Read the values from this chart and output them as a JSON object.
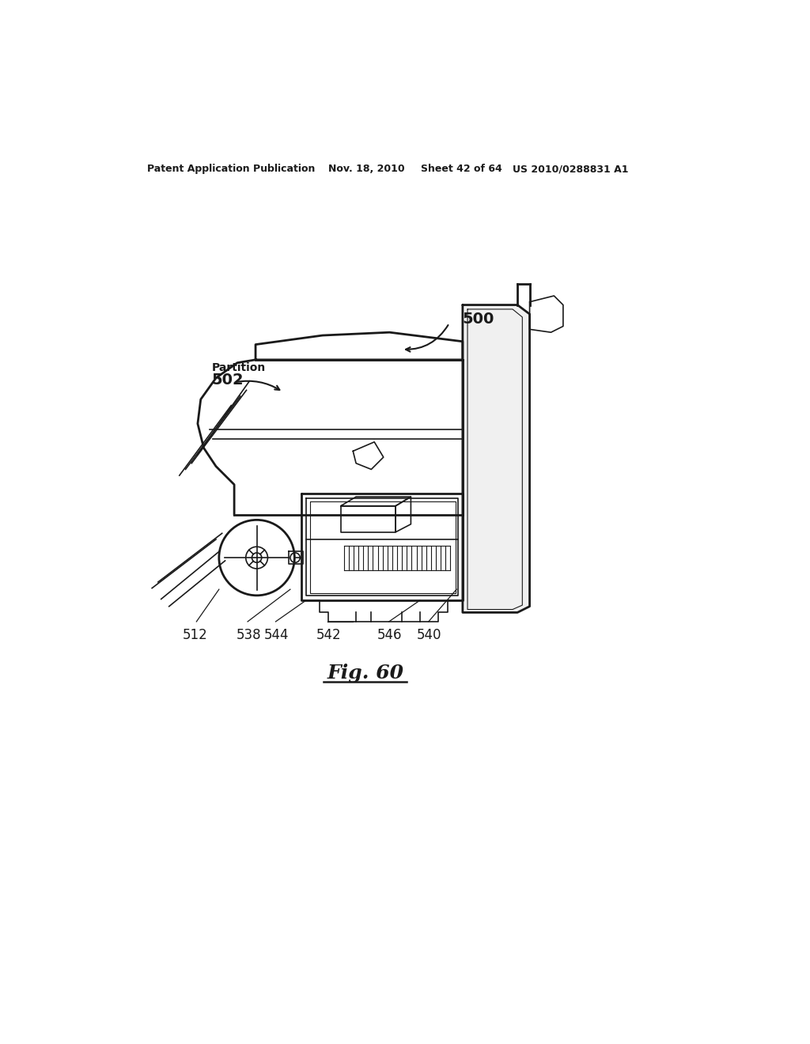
{
  "background_color": "#ffffff",
  "header_text": "Patent Application Publication",
  "header_date": "Nov. 18, 2010",
  "header_sheet": "Sheet 42 of 64",
  "header_patent": "US 2010/0288831 A1",
  "figure_label": "Fig. 60",
  "label_500": "500",
  "label_502": "502",
  "label_512": "512",
  "label_538": "538",
  "label_544": "544",
  "label_542": "542",
  "label_546": "546",
  "label_540": "540",
  "partition_text": "Partition",
  "color": "#1a1a1a",
  "lw_main": 2.0,
  "lw_thin": 1.2,
  "lw_fine": 0.8
}
